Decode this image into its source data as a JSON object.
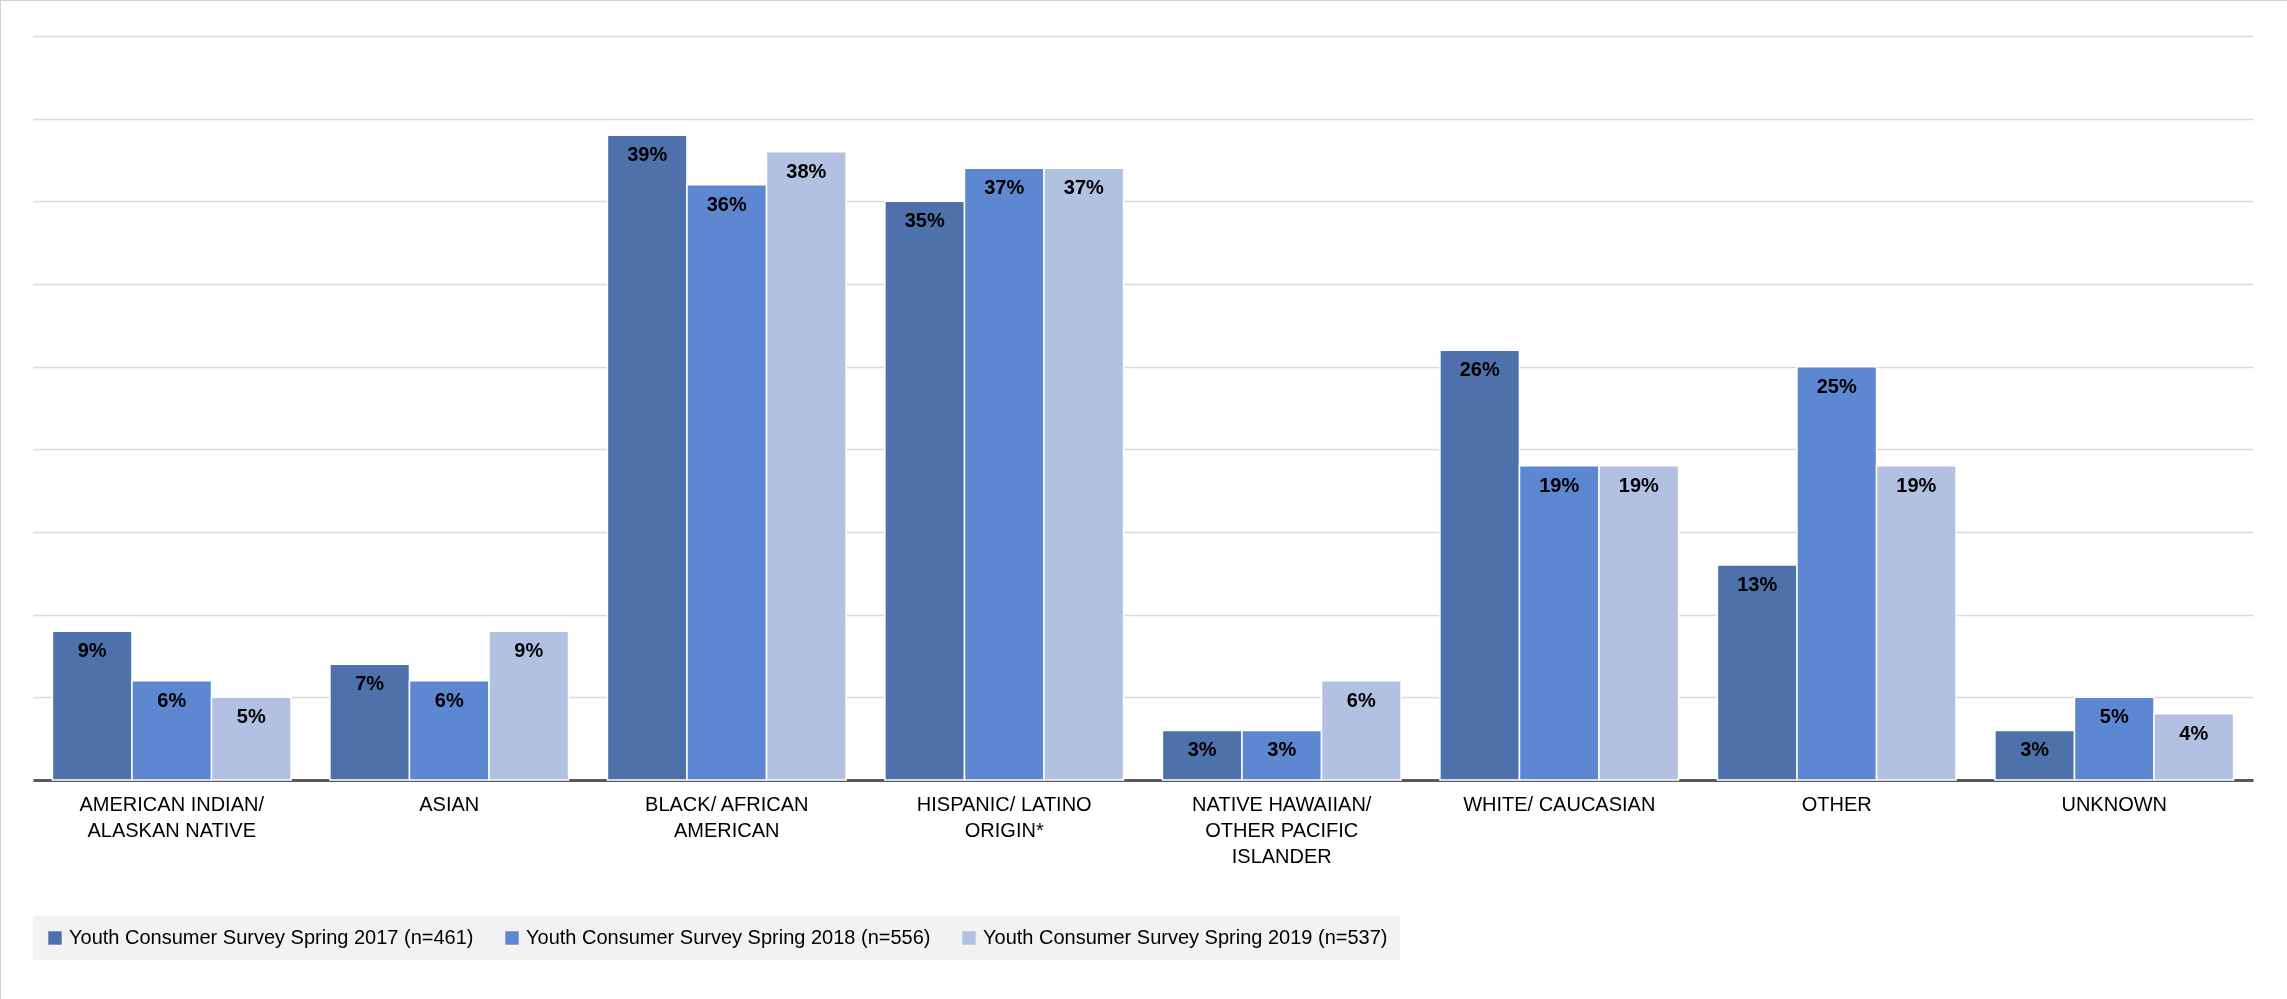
{
  "chart_data": {
    "type": "bar",
    "categories": [
      "AMERICAN INDIAN/ ALASKAN NATIVE",
      "ASIAN",
      "BLACK/ AFRICAN AMERICAN",
      "HISPANIC/ LATINO ORIGIN*",
      "NATIVE HAWAIIAN/ OTHER PACIFIC ISLANDER",
      "WHITE/ CAUCASIAN",
      "OTHER",
      "UNKNOWN"
    ],
    "series": [
      {
        "name": "Youth Consumer Survey Spring 2017 (n=461)",
        "color": "#4e71ab",
        "values": [
          9,
          7,
          39,
          35,
          3,
          26,
          13,
          3
        ],
        "value_labels": [
          "9%",
          "7%",
          "39%",
          "35%",
          "3%",
          "26%",
          "13%",
          "3%"
        ]
      },
      {
        "name": "Youth Consumer Survey Spring 2018 (n=556)",
        "color": "#5d87d0",
        "values": [
          6,
          6,
          36,
          37,
          3,
          19,
          25,
          5
        ],
        "value_labels": [
          "6%",
          "6%",
          "36%",
          "37%",
          "3%",
          "19%",
          "25%",
          "5%"
        ]
      },
      {
        "name": "Youth Consumer Survey Spring 2019 (n=537)",
        "color": "#b2c1e2",
        "values": [
          5,
          9,
          38,
          37,
          6,
          19,
          19,
          4
        ],
        "value_labels": [
          "5%",
          "9%",
          "38%",
          "37%",
          "6%",
          "19%",
          "19%",
          "4%"
        ]
      }
    ],
    "ylim": [
      0,
      45
    ],
    "yticks": [
      {
        "value": 0,
        "label": null
      },
      {
        "value": 5,
        "label": null
      },
      {
        "value": 10,
        "label": null
      },
      {
        "value": 15,
        "label": null
      },
      {
        "value": 20,
        "label": null
      },
      {
        "value": 25,
        "label": null
      },
      {
        "value": 30,
        "label": null
      },
      {
        "value": 35,
        "label": null
      },
      {
        "value": 40,
        "label": null
      },
      {
        "value": 45,
        "label": null
      }
    ],
    "grid": true,
    "legend": "bottom",
    "tick_labels": "x"
  }
}
